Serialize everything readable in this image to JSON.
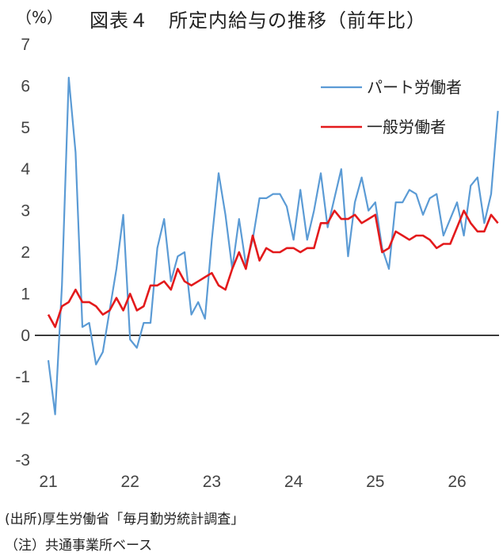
{
  "header": {
    "unit": "（%）",
    "title": "図表４　所定内給与の推移（前年比）"
  },
  "notes": {
    "source": "(出所)厚生労働省「毎月勤労統計調査」",
    "note": "（注）共通事業所ベース"
  },
  "colors": {
    "part_time": "#5b9bd5",
    "general": "#e31a1c",
    "zero_line": "#000000"
  },
  "chart_data": {
    "type": "line",
    "ylim": [
      -3,
      7
    ],
    "yticks": [
      "7",
      "6",
      "5",
      "4",
      "3",
      "2",
      "1",
      "0",
      "-1",
      "-2",
      "-3"
    ],
    "xticks": [
      "21",
      "22",
      "23",
      "24",
      "25",
      "26"
    ],
    "x_start_month": "2021-01",
    "legend_position": "top-right",
    "series": [
      {
        "name": "パート労働者",
        "key": "part_time",
        "values": [
          -0.6,
          -1.9,
          1.2,
          6.2,
          4.4,
          0.2,
          0.3,
          -0.7,
          -0.4,
          0.6,
          1.6,
          2.9,
          -0.1,
          -0.3,
          0.3,
          0.3,
          2.1,
          2.8,
          1.3,
          1.9,
          2.0,
          0.5,
          0.8,
          0.4,
          2.3,
          3.9,
          2.9,
          1.6,
          2.8,
          1.7,
          2.3,
          3.3,
          3.3,
          3.4,
          3.4,
          3.1,
          2.3,
          3.5,
          2.3,
          3.0,
          3.9,
          2.6,
          3.3,
          4.0,
          1.9,
          3.2,
          3.8,
          3.0,
          3.2,
          2.1,
          1.6,
          3.2,
          3.2,
          3.5,
          3.4,
          2.9,
          3.3,
          3.4,
          2.4,
          2.8,
          3.2,
          2.4,
          3.6,
          3.8,
          2.7,
          3.4,
          5.4
        ]
      },
      {
        "name": "一般労働者",
        "key": "general",
        "values": [
          0.5,
          0.2,
          0.7,
          0.8,
          1.1,
          0.8,
          0.8,
          0.7,
          0.5,
          0.6,
          0.9,
          0.6,
          1.0,
          0.6,
          0.7,
          1.2,
          1.2,
          1.3,
          1.1,
          1.6,
          1.3,
          1.2,
          1.3,
          1.4,
          1.5,
          1.2,
          1.1,
          1.6,
          2.0,
          1.6,
          2.4,
          1.8,
          2.1,
          2.0,
          2.0,
          2.1,
          2.1,
          2.0,
          2.1,
          2.1,
          2.7,
          2.7,
          3.0,
          2.8,
          2.8,
          2.9,
          2.7,
          2.8,
          2.9,
          2.0,
          2.1,
          2.5,
          2.4,
          2.3,
          2.4,
          2.4,
          2.3,
          2.1,
          2.2,
          2.2,
          2.6,
          3.0,
          2.7,
          2.5,
          2.5,
          2.9,
          2.7
        ]
      }
    ]
  }
}
